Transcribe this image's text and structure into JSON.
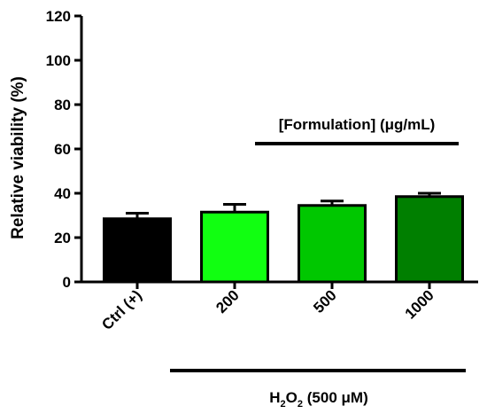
{
  "chart_data": {
    "type": "bar",
    "categories": [
      "Ctrl (+)",
      "200",
      "500",
      "1000"
    ],
    "values": [
      28.5,
      31.5,
      34.5,
      38.5
    ],
    "errors": [
      2.5,
      3.5,
      2.0,
      1.5
    ],
    "bar_colors": [
      "#000000",
      "#11FF11",
      "#00C700",
      "#007F00"
    ],
    "ylabel": "Relative viability (%)",
    "ylim": [
      0,
      120
    ],
    "yticks": [
      "0",
      "20",
      "40",
      "60",
      "80",
      "100",
      "120"
    ],
    "ytick_values": [
      0,
      20,
      40,
      60,
      80,
      100,
      120
    ],
    "grid": false,
    "annotations": {
      "formulation": "[Formulation] (μg/mL)",
      "h2o2_prefix": "H",
      "h2o2_sub1": "2",
      "h2o2_mid": "O",
      "h2o2_sub2": "2",
      "h2o2_suffix": " (500 μM)"
    }
  }
}
